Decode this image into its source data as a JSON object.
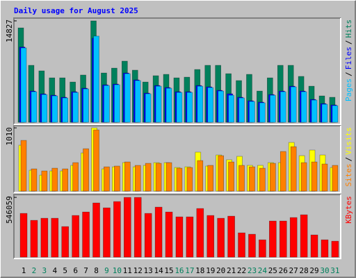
{
  "chart_data": [
    {
      "type": "bar",
      "title": "Daily usage for August 2025",
      "title_color": "#0000ff",
      "ylim": [
        0,
        14827
      ],
      "yticks": [
        14827
      ],
      "legend_separator": "/",
      "series": [
        {
          "name": "Hits",
          "color": "#00805c",
          "values": [
            13800,
            8330,
            7520,
            6500,
            6500,
            5890,
            6910,
            14827,
            7210,
            7920,
            8940,
            7620,
            5890,
            6810,
            7010,
            6500,
            6600,
            7720,
            8330,
            8330,
            7110,
            6100,
            7010,
            4570,
            6500,
            8330,
            8330,
            6710,
            5280,
            3860,
            3660
          ]
        },
        {
          "name": "Files",
          "color": "#0000ff",
          "values": [
            11000,
            4570,
            4160,
            3960,
            3660,
            4470,
            4980,
            12300,
            5480,
            5590,
            7210,
            6200,
            4270,
            5380,
            5080,
            4470,
            4470,
            5380,
            5180,
            4670,
            4170,
            3660,
            3150,
            2950,
            4060,
            4570,
            5280,
            4570,
            3350,
            2740,
            2540
          ]
        },
        {
          "name": "Pages",
          "color": "#00c0ff",
          "values": [
            10870,
            4470,
            4060,
            3860,
            3560,
            4370,
            4880,
            12600,
            5380,
            5490,
            7110,
            6100,
            4170,
            5280,
            4980,
            4370,
            4370,
            5280,
            5080,
            4570,
            3960,
            3560,
            3050,
            2850,
            3960,
            4470,
            5180,
            4470,
            3250,
            2640,
            2440
          ]
        }
      ]
    },
    {
      "type": "bar",
      "ylim": [
        0,
        1010
      ],
      "yticks": [
        1010
      ],
      "legend_separator": "/",
      "series": [
        {
          "name": "Visits",
          "color": "#ffff00",
          "values": [
            733,
            333,
            255,
            322,
            322,
            411,
            610,
            1010,
            355,
            388,
            455,
            388,
            411,
            455,
            455,
            377,
            388,
            622,
            400,
            577,
            500,
            555,
            411,
            411,
            455,
            455,
            777,
            566,
            655,
            577,
            377
          ]
        },
        {
          "name": "Sites",
          "color": "#ff8000",
          "values": [
            810,
            355,
            322,
            366,
            355,
            455,
            677,
            977,
            388,
            400,
            466,
            411,
            444,
            444,
            455,
            366,
            377,
            488,
            411,
            566,
            466,
            411,
            388,
            366,
            444,
            633,
            710,
            455,
            466,
            433,
            411
          ]
        }
      ]
    },
    {
      "type": "bar",
      "ylim": [
        0,
        546059
      ],
      "yticks": [
        546059
      ],
      "categories": [
        "1",
        "2",
        "3",
        "4",
        "5",
        "6",
        "7",
        "8",
        "9",
        "10",
        "11",
        "12",
        "13",
        "14",
        "15",
        "16",
        "17",
        "18",
        "19",
        "20",
        "21",
        "22",
        "23",
        "24",
        "25",
        "26",
        "27",
        "28",
        "29",
        "30",
        "31"
      ],
      "label_colors": [
        "#000000",
        "#00805c",
        "#00805c",
        "#000000",
        "#000000",
        "#000000",
        "#000000",
        "#000000",
        "#00805c",
        "#00805c",
        "#000000",
        "#000000",
        "#000000",
        "#000000",
        "#000000",
        "#00805c",
        "#00805c",
        "#000000",
        "#000000",
        "#000000",
        "#000000",
        "#000000",
        "#00805c",
        "#00805c",
        "#000000",
        "#000000",
        "#000000",
        "#000000",
        "#000000",
        "#00805c",
        "#00805c"
      ],
      "series": [
        {
          "name": "KBytes",
          "color": "#ff0000",
          "values": [
            400000,
            336500,
            355600,
            355600,
            279400,
            381000,
            412700,
            495300,
            450800,
            508000,
            546059,
            546059,
            400000,
            457200,
            412700,
            368300,
            368300,
            444500,
            381000,
            355600,
            374600,
            222200,
            209500,
            158700,
            330200,
            330200,
            361900,
            387300,
            203200,
            158700,
            146000
          ]
        }
      ]
    }
  ]
}
